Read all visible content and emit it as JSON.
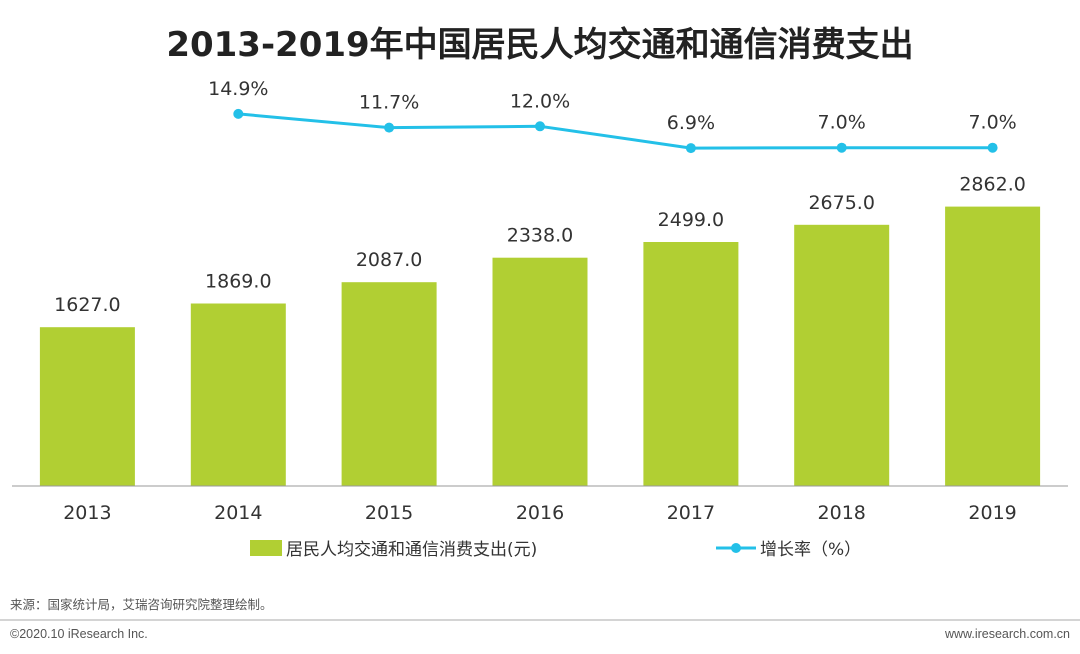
{
  "chart_data": {
    "type": "bar",
    "title": "2013-2019年中国居民人均交通和通信消费支出",
    "categories": [
      "2013",
      "2014",
      "2015",
      "2016",
      "2017",
      "2018",
      "2019"
    ],
    "series": [
      {
        "name": "居民人均交通和通信消费支出(元)",
        "type": "bar",
        "values": [
          1627.0,
          1869.0,
          2087.0,
          2338.0,
          2499.0,
          2675.0,
          2862.0
        ],
        "labels": [
          "1627.0",
          "1869.0",
          "2087.0",
          "2338.0",
          "2499.0",
          "2675.0",
          "2862.0"
        ],
        "color": "#b1cf33"
      },
      {
        "name": "增长率（%）",
        "type": "line",
        "values": [
          null,
          14.9,
          11.7,
          12.0,
          6.9,
          7.0,
          7.0
        ],
        "labels": [
          "",
          "14.9%",
          "11.7%",
          "12.0%",
          "6.9%",
          "7.0%",
          "7.0%"
        ],
        "color": "#23c0e8"
      }
    ],
    "xlabel": "",
    "ylabel": "",
    "ylim": [
      0,
      3800
    ],
    "ylim_secondary": [
      -50,
      20
    ],
    "grid": false,
    "legend_position": "bottom"
  },
  "source": "来源：国家统计局，艾瑞咨询研究院整理绘制。",
  "footer": {
    "copyright": "©2020.10 iResearch Inc.",
    "website": "www.iresearch.com.cn"
  },
  "colors": {
    "axis": "#999999",
    "divider": "#aaaaaa"
  }
}
